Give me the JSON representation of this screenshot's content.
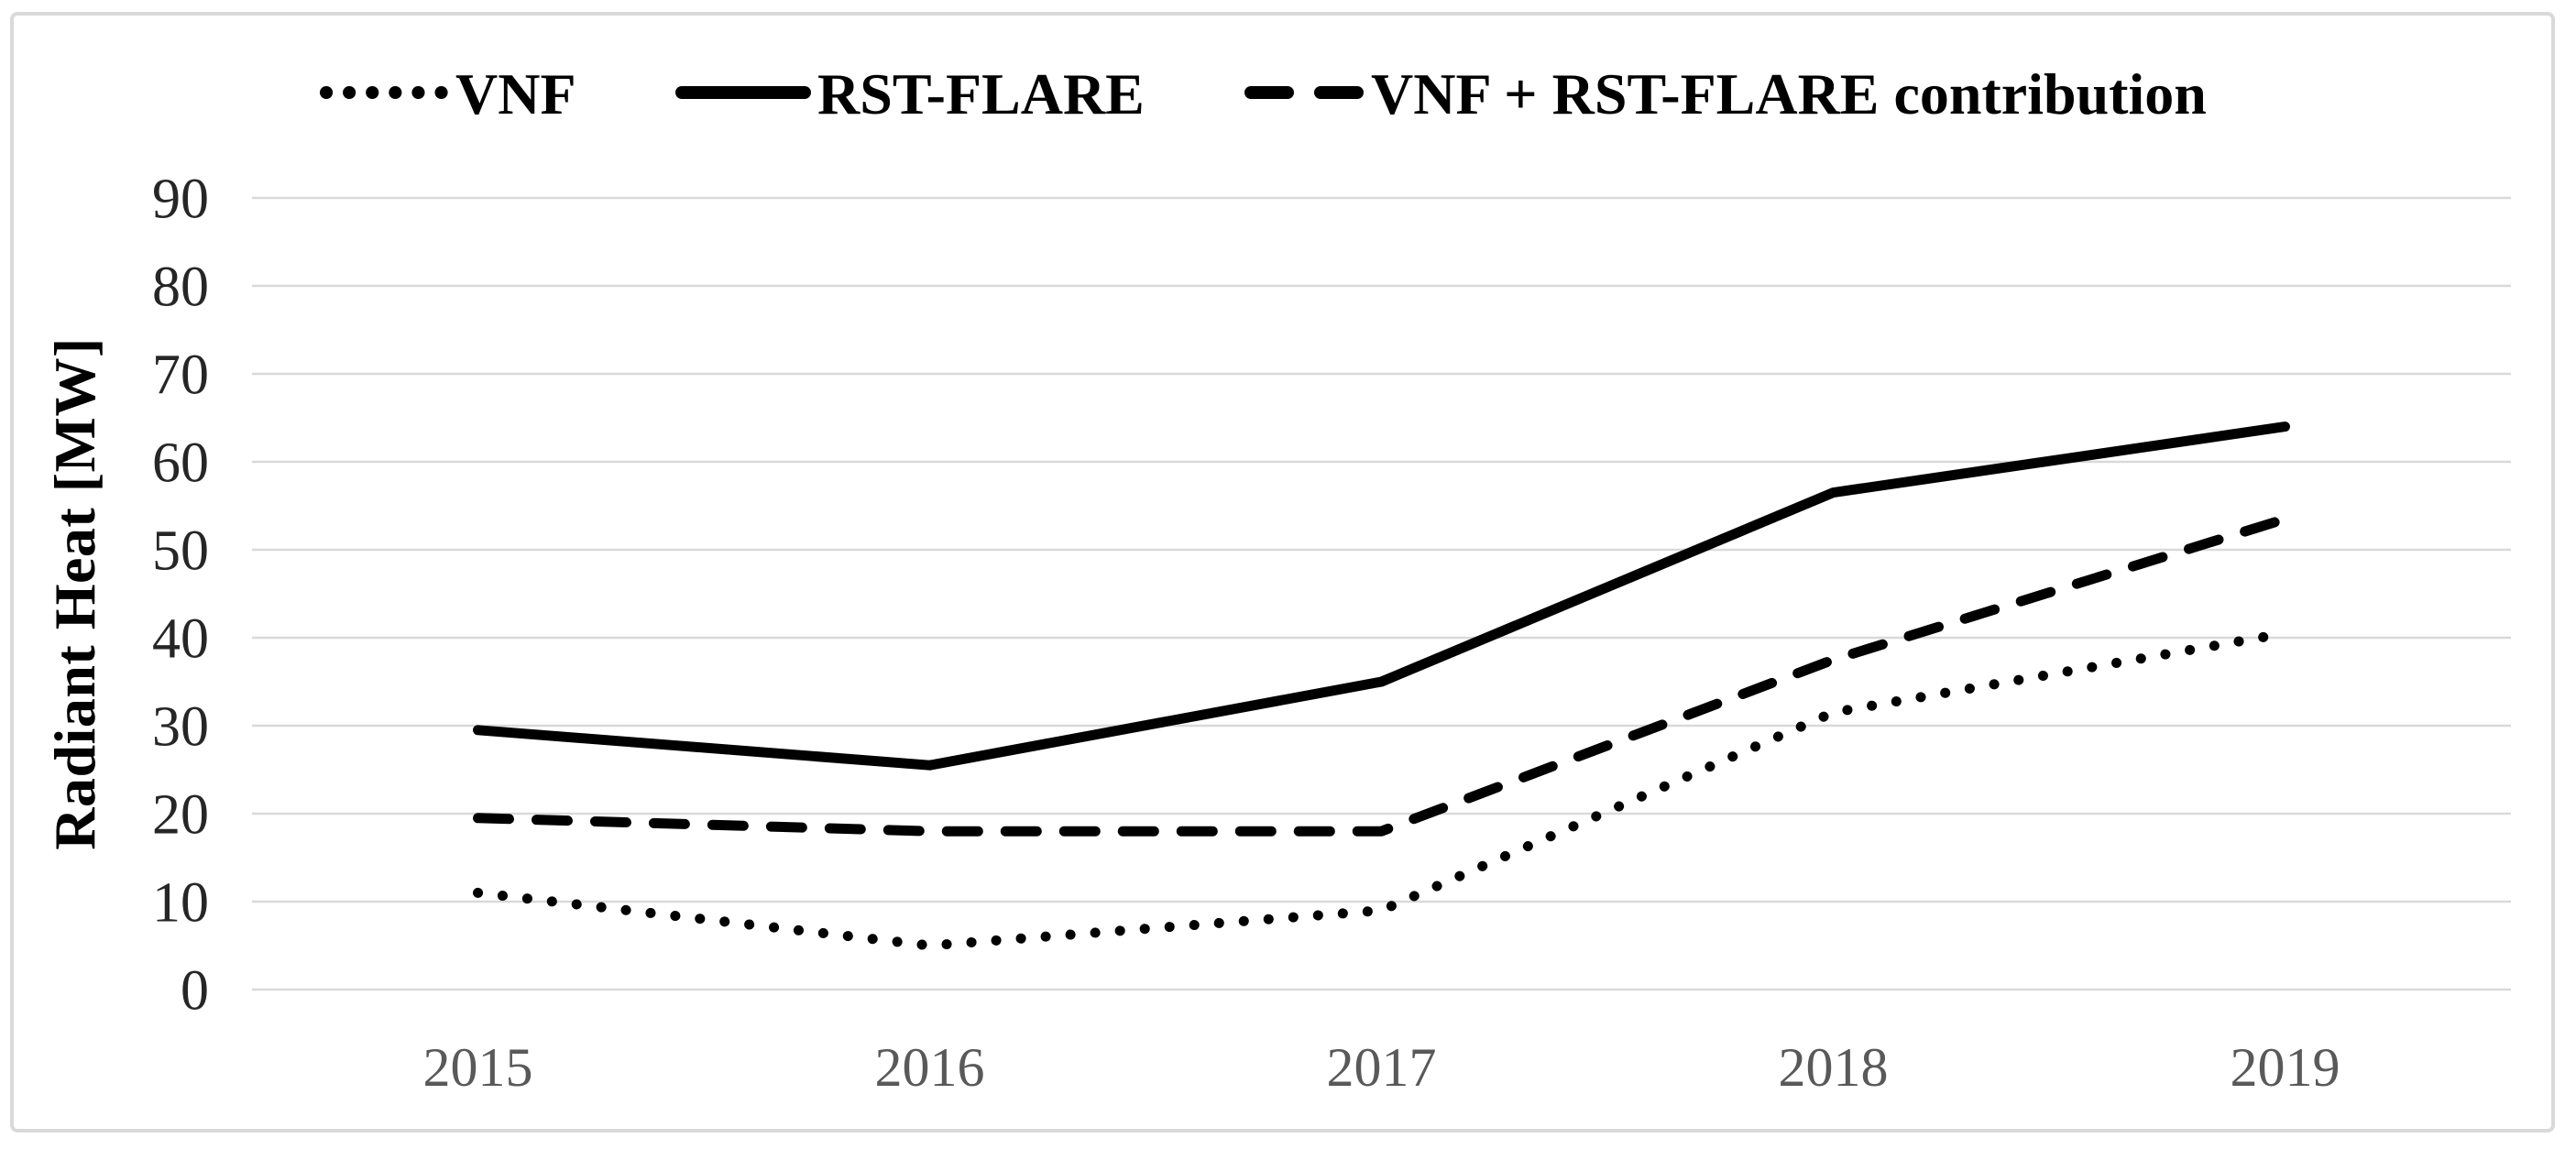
{
  "figure": {
    "background": "#ffffff",
    "border_color": "#d9d9d9",
    "grid_color": "#d9d9d9",
    "series_color": "#000000",
    "y_tick_color": "#262626",
    "x_tick_color": "#595959",
    "legend_text_color": "#000000"
  },
  "chart_data": {
    "type": "line",
    "title": "",
    "categories": [
      "2015",
      "2016",
      "2017",
      "2018",
      "2019"
    ],
    "series": [
      {
        "name": "VNF",
        "style": "dotted",
        "values": [
          11,
          5,
          9,
          31.5,
          40.5
        ]
      },
      {
        "name": "RST-FLARE",
        "style": "solid",
        "values": [
          29.5,
          25.5,
          35,
          56.5,
          64
        ]
      },
      {
        "name": "VNF + RST-FLARE contribution",
        "style": "dashed",
        "values": [
          19.5,
          18,
          18,
          37.5,
          53.5
        ]
      }
    ],
    "xlabel": "",
    "ylabel": "Radiant Heat [MW]",
    "ylim": [
      0,
      90
    ],
    "yticks": [
      0,
      10,
      20,
      30,
      40,
      50,
      60,
      70,
      80,
      90
    ],
    "grid": true,
    "legend_position": "top"
  }
}
